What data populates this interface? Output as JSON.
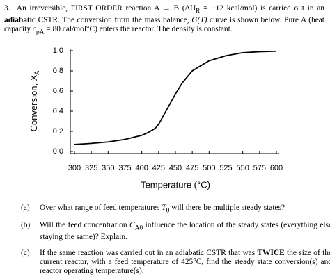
{
  "intro": [
    "3.",
    "An irreversible, FIRST ORDER reaction A → B (ΔH",
    "R",
    " = −12 kcal/mol) is carried out in an ",
    "adiabatic",
    " CSTR. The conversion from the mass balance, ",
    "G(T)",
    " curve is shown below. Pure A (heat capacity ",
    "c",
    "pA",
    " = 80 cal/mol°C) enters the reactor. The density is constant."
  ],
  "chart_data": {
    "type": "line",
    "x_label": "Temperature (°C)",
    "y_label": [
      "Conversion, X",
      "A"
    ],
    "x": [
      300,
      325,
      350,
      375,
      400,
      410,
      420,
      425,
      430,
      440,
      450,
      460,
      475,
      500,
      525,
      550,
      575,
      600
    ],
    "y": [
      0.07,
      0.08,
      0.095,
      0.12,
      0.16,
      0.19,
      0.23,
      0.27,
      0.33,
      0.45,
      0.57,
      0.68,
      0.8,
      0.9,
      0.95,
      0.98,
      0.99,
      0.995
    ],
    "color": "#000000",
    "xlim": [
      300,
      600
    ],
    "ylim": [
      0,
      1
    ],
    "xticks": [
      300,
      325,
      350,
      375,
      400,
      425,
      450,
      475,
      500,
      525,
      550,
      575,
      600
    ],
    "yticks": [
      {
        "value": 0,
        "label": "0.0"
      },
      {
        "value": 0.2,
        "label": "0.2"
      },
      {
        "value": 0.4,
        "label": "0.4"
      },
      {
        "value": 0.6,
        "label": "0.6"
      },
      {
        "value": 0.8,
        "label": "0.8"
      },
      {
        "value": 1,
        "label": "1.0"
      }
    ]
  },
  "questions": [
    [
      "(a)",
      "Over what range of feed temperatures ",
      "T",
      "0",
      " will there be multiple steady states?"
    ],
    [
      "(b)",
      "Will the feed concentration ",
      "C",
      "A0",
      " influence the location of the steady states (everything else staying the same)? Explain."
    ],
    [
      "(c)",
      "If the same reaction was carried out in an adiabatic CSTR that was ",
      "TWICE",
      " the size of the current reactor, with a feed temperature of 425°C, find the steady state conversion(s) and reactor operating temperature(s)."
    ]
  ]
}
